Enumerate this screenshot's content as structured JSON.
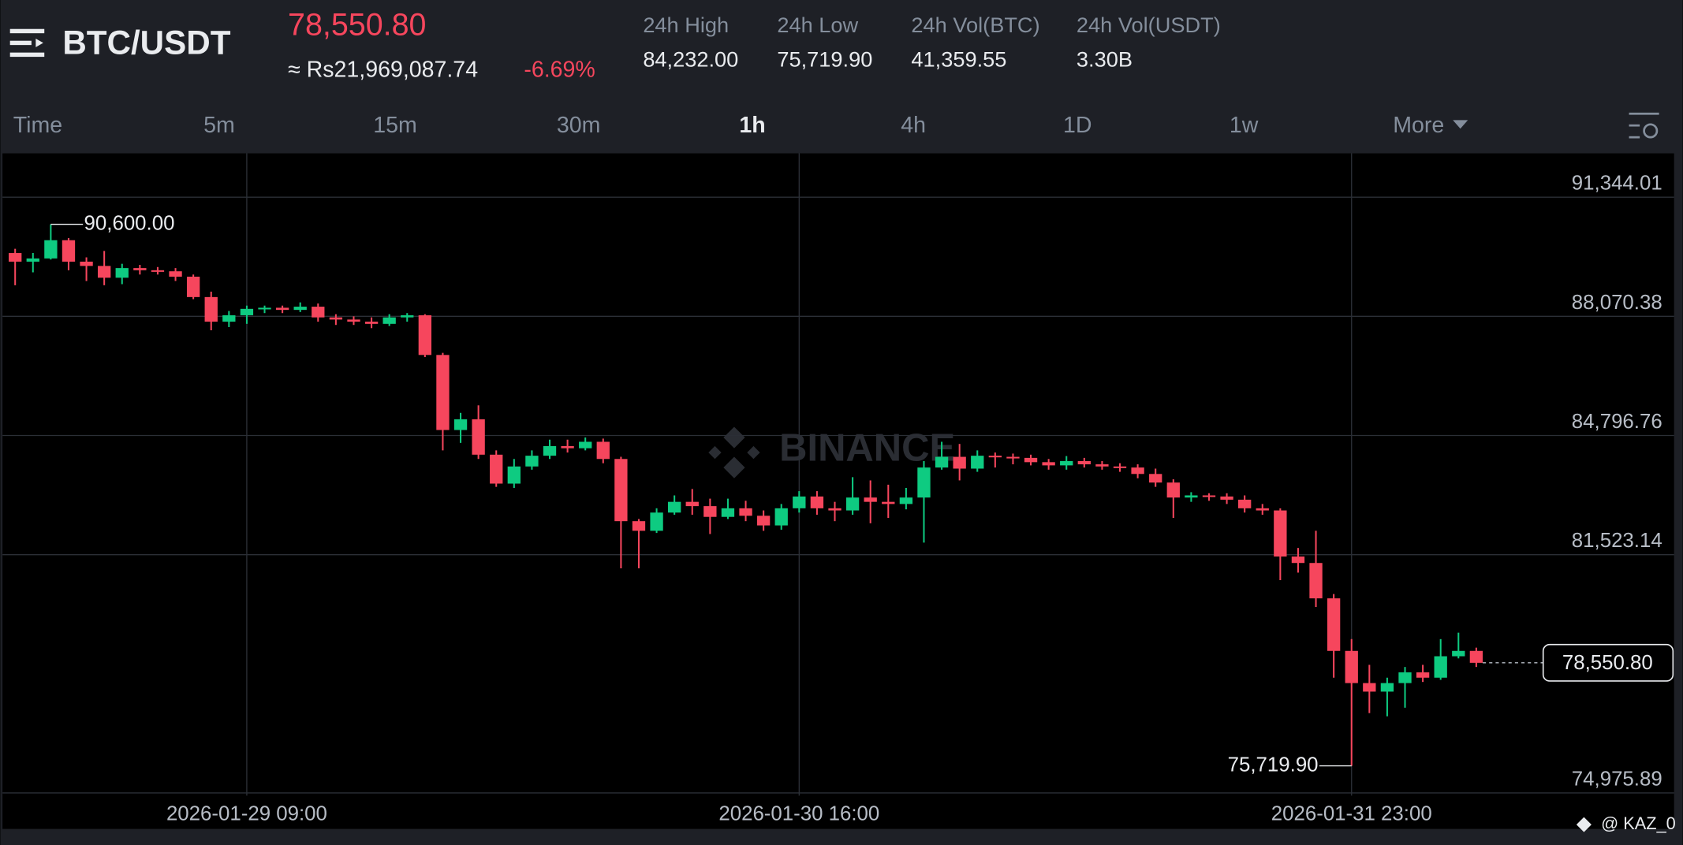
{
  "header": {
    "pair": "BTC/USDT",
    "price": "78,550.80",
    "fiat_price": "≈ Rs21,969,087.74",
    "change": "-6.69%",
    "stats": [
      {
        "label": "24h High",
        "value": "84,232.00"
      },
      {
        "label": "24h Low",
        "value": "75,719.90"
      },
      {
        "label": "24h Vol(BTC)",
        "value": "41,359.55"
      },
      {
        "label": "24h Vol(USDT)",
        "value": "3.30B"
      }
    ]
  },
  "intervals": {
    "items": [
      "Time",
      "5m",
      "15m",
      "30m",
      "1h",
      "4h",
      "1D",
      "1w",
      "More"
    ],
    "active": "1h"
  },
  "watermark": "BINANCE",
  "credit": "@ KAZ_0",
  "chart_data": {
    "type": "candlestick",
    "up_color": "#0ecb81",
    "down_color": "#f6465d",
    "grid": true,
    "xlim": [
      -0.83,
      93.1
    ],
    "xticks": [
      {
        "value": 13,
        "label": "2026-01-29 09:00"
      },
      {
        "value": 44,
        "label": "2026-01-30 16:00"
      },
      {
        "value": 75,
        "label": "2026-01-31 23:00"
      }
    ],
    "ylim": [
      74900,
      92550
    ],
    "yticks": [
      {
        "value": 91344.01,
        "label": "91,344.01"
      },
      {
        "value": 88070.38,
        "label": "88,070.38"
      },
      {
        "value": 84796.76,
        "label": "84,796.76"
      },
      {
        "value": 81523.14,
        "label": "81,523.14"
      },
      {
        "value": 74975.89,
        "label": "74,975.89"
      }
    ],
    "high_label": "90,600.00",
    "low_label": "75,719.90",
    "last_label": "78,550.80",
    "open": [
      89810,
      89574,
      89662,
      90163,
      89574,
      89456,
      89132,
      89397,
      89338,
      89309,
      89161,
      88601,
      87924,
      88101,
      88277,
      88307,
      88248,
      88336,
      88042,
      87983,
      87924,
      87865,
      88042,
      88101,
      87010,
      84948,
      85243,
      84270,
      83475,
      83946,
      84241,
      84506,
      84447,
      84624,
      84152,
      82443,
      82178,
      82679,
      82974,
      82856,
      82561,
      82797,
      82591,
      82326,
      82797,
      83121,
      82797,
      82738,
      83092,
      82974,
      82915,
      83092,
      83917,
      84211,
      83887,
      84241,
      84211,
      84182,
      84064,
      83976,
      84093,
      84005,
      83946,
      83917,
      83740,
      83504,
      83092,
      83151,
      83121,
      83033,
      82797,
      82738,
      81471,
      81294,
      80322,
      78878,
      77994,
      77759,
      77994,
      78289,
      78142,
      78731,
      78878
    ],
    "high": [
      89927,
      89810,
      90600,
      90222,
      89692,
      89868,
      89515,
      89485,
      89426,
      89397,
      89220,
      88749,
      88218,
      88366,
      88366,
      88366,
      88454,
      88425,
      88130,
      88071,
      88042,
      88130,
      88160,
      88130,
      87069,
      85419,
      85626,
      84388,
      84152,
      84388,
      84683,
      84683,
      84742,
      84712,
      84211,
      82502,
      82797,
      83151,
      83327,
      83062,
      83062,
      83003,
      82738,
      82915,
      83268,
      83268,
      82974,
      83652,
      83563,
      83445,
      83357,
      84093,
      84624,
      84565,
      84388,
      84329,
      84300,
      84270,
      84152,
      84232,
      84182,
      84093,
      84035,
      84005,
      83887,
      83593,
      83239,
      83210,
      83210,
      83151,
      82915,
      82797,
      81707,
      82178,
      80440,
      79202,
      78495,
      78142,
      78436,
      78495,
      79202,
      79379,
      78967
    ],
    "low": [
      88926,
      89279,
      89633,
      89338,
      89043,
      88926,
      88955,
      89220,
      89220,
      89043,
      88543,
      87688,
      87776,
      87865,
      88160,
      88160,
      88189,
      87924,
      87835,
      87835,
      87747,
      87806,
      87924,
      86951,
      84388,
      84594,
      84152,
      83386,
      83357,
      83858,
      84152,
      84329,
      84388,
      84035,
      81147,
      81147,
      82119,
      82620,
      82620,
      82090,
      82502,
      82443,
      82178,
      82208,
      82679,
      82620,
      82443,
      82620,
      82385,
      82532,
      82768,
      81854,
      83858,
      83563,
      83799,
      83917,
      84005,
      83976,
      83858,
      83858,
      83917,
      83858,
      83799,
      83622,
      83386,
      82532,
      82974,
      83003,
      82915,
      82679,
      82620,
      80823,
      81029,
      80086,
      78142,
      75719.9,
      77169,
      77081,
      77317,
      78024,
      78083,
      78672,
      78436
    ],
    "close": [
      89574,
      89662,
      90163,
      89574,
      89456,
      89132,
      89397,
      89338,
      89309,
      89161,
      88601,
      87924,
      88101,
      88277,
      88307,
      88248,
      88336,
      88042,
      87983,
      87924,
      87865,
      88042,
      88101,
      87010,
      84948,
      85243,
      84270,
      83475,
      83946,
      84241,
      84506,
      84447,
      84624,
      84152,
      82443,
      82178,
      82679,
      82974,
      82856,
      82561,
      82797,
      82591,
      82326,
      82797,
      83121,
      82797,
      82738,
      83092,
      82974,
      82915,
      83092,
      83917,
      84211,
      83887,
      84241,
      84211,
      84182,
      84064,
      83976,
      84093,
      84005,
      83946,
      83917,
      83740,
      83504,
      83092,
      83151,
      83121,
      83033,
      82797,
      82738,
      81471,
      81294,
      80322,
      78878,
      77994,
      77759,
      77994,
      78289,
      78142,
      78731,
      78878,
      78550.8
    ]
  }
}
